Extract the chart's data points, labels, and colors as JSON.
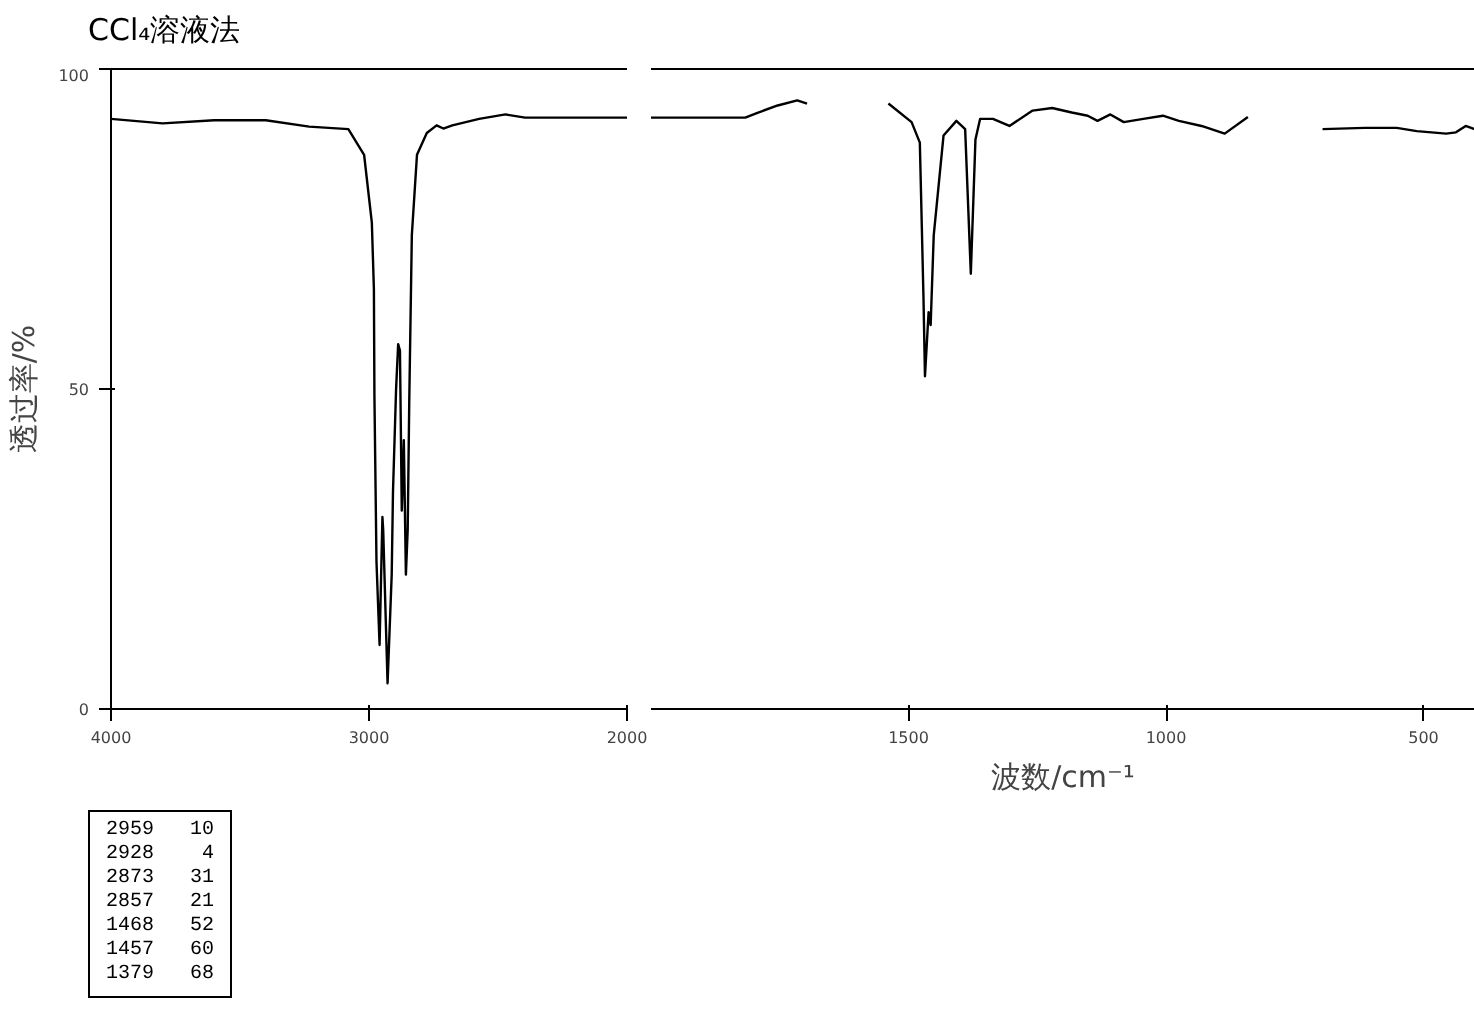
{
  "chart_data": [
    {
      "type": "line",
      "title": "CCl₄溶液法",
      "ylabel": "透过率/%",
      "series": [
        {
          "color": "#000000",
          "x": [
            4000,
            3800,
            3600,
            3400,
            3232,
            3080,
            3019,
            2989,
            2981,
            2979,
            2971,
            2959,
            2948,
            2945,
            2928,
            2912,
            2907,
            2895,
            2887,
            2880,
            2873,
            2865,
            2857,
            2850,
            2844,
            2834,
            2814,
            2776,
            2738,
            2712,
            2677,
            2573,
            2471,
            2395,
            2000
          ],
          "values": [
            92.2,
            91.5,
            92,
            92,
            91,
            90.6,
            86.6,
            76,
            65.6,
            49,
            23,
            10,
            30,
            28,
            4,
            21,
            34,
            50,
            57,
            56,
            31,
            42,
            21,
            28,
            48,
            74,
            86.6,
            90,
            91.2,
            90.7,
            91.2,
            92.2,
            92.9,
            92.4,
            92.4
          ]
        }
      ],
      "xlim": [
        4000,
        2000
      ],
      "xticks": [
        4000,
        3000,
        2000
      ],
      "ylim": [
        0,
        100
      ],
      "yticks": [
        0,
        50,
        100
      ],
      "annotations": [
        "2959   10",
        "2928    4",
        "2873   31",
        "2857   21",
        "1468   52",
        "1457   60",
        "1379   68"
      ]
    },
    {
      "type": "line",
      "xlabel": "波数/cm⁻¹",
      "series": [
        {
          "color": "#000000",
          "x": [
            2000,
            1817,
            1792,
            1754,
            1716,
            1697,
            1620,
            1539,
            1494,
            1478,
            1471,
            1468,
            1461,
            1457,
            1451,
            1432,
            1407,
            1390,
            1379,
            1370,
            1361,
            1336,
            1304,
            1259,
            1221,
            1183,
            1152,
            1133,
            1108,
            1082,
            1044,
            1006,
            975,
            931,
            886,
            841,
            770,
            696,
            614,
            552,
            513,
            456,
            437,
            418,
            401
          ],
          "values": [
            92.4,
            92.4,
            93.2,
            94.3,
            95.1,
            94.6,
            null,
            94.6,
            91.7,
            88.5,
            64.6,
            52,
            62,
            60,
            74,
            89.6,
            91.9,
            90.6,
            68,
            89,
            92.2,
            92.2,
            91.1,
            93.5,
            93.9,
            93.2,
            92.7,
            91.9,
            92.9,
            91.7,
            92.2,
            92.7,
            91.9,
            91.1,
            89.9,
            92.5,
            null,
            90.6,
            90.8,
            90.8,
            90.3,
            89.9,
            90.1,
            91.1,
            90.6
          ]
        }
      ],
      "xlim": [
        2000,
        400
      ],
      "xticks": [
        1500,
        1000,
        500
      ],
      "ylim": [
        0,
        100
      ],
      "yticks": [
        0,
        50,
        100
      ],
      "tick_labels": "x"
    }
  ]
}
